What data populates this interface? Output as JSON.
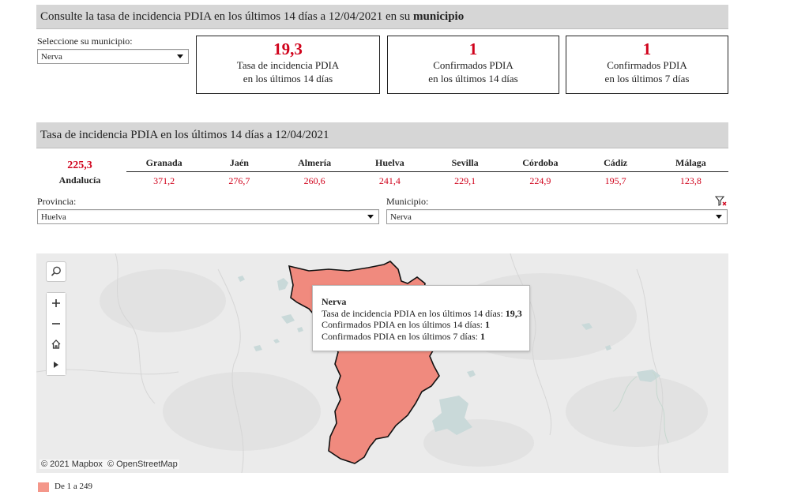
{
  "header": {
    "title_prefix": "Consulte la tasa de incidencia PDIA en los últimos 14 días a 12/04/2021 en su ",
    "title_bold": "municipio"
  },
  "municipio_selector": {
    "label": "Seleccione su municipio:",
    "value": "Nerva"
  },
  "kpis": [
    {
      "value": "19,3",
      "line1": "Tasa de incidencia PDIA",
      "line2": "en los últimos 14 días"
    },
    {
      "value": "1",
      "line1": "Confirmados PDIA",
      "line2": "en los últimos 14 días"
    },
    {
      "value": "1",
      "line1": "Confirmados PDIA",
      "line2": "en los últimos 7 días"
    }
  ],
  "section2": {
    "title": "Tasa de incidencia PDIA en los últimos 14 días a 12/04/2021"
  },
  "andalucia": {
    "value": "225,3",
    "label": "Andalucía"
  },
  "provinces": [
    {
      "name": "Granada",
      "value": "371,2"
    },
    {
      "name": "Jaén",
      "value": "276,7"
    },
    {
      "name": "Almería",
      "value": "260,6"
    },
    {
      "name": "Huelva",
      "value": "241,4"
    },
    {
      "name": "Sevilla",
      "value": "229,1"
    },
    {
      "name": "Córdoba",
      "value": "224,9"
    },
    {
      "name": "Cádiz",
      "value": "195,7"
    },
    {
      "name": "Málaga",
      "value": "123,8"
    }
  ],
  "filters": {
    "provincia_label": "Provincia:",
    "provincia_value": "Huelva",
    "municipio_label": "Municipio:",
    "municipio_value": "Nerva"
  },
  "map": {
    "attribution_mapbox": "© 2021 Mapbox",
    "attribution_osm": "© OpenStreetMap",
    "region_color": "#f08a7e",
    "tooltip": {
      "title": "Nerva",
      "row1_label": "Tasa de incidencia PDIA en los últimos 14 días: ",
      "row1_value": "19,3",
      "row2_label": "Confirmados PDIA en los últimos 14 días: ",
      "row2_value": "1",
      "row3_label": "Confirmados PDIA en los últimos 7 días: ",
      "row3_value": "1"
    }
  },
  "legend": {
    "label": "De 1 a 249",
    "color": "#f4978a"
  },
  "icons": {
    "search": "search-icon",
    "zoom_in": "plus-icon",
    "zoom_out": "minus-icon",
    "home": "home-icon",
    "expand": "play-icon",
    "clear_filter": "filter-clear-icon"
  }
}
